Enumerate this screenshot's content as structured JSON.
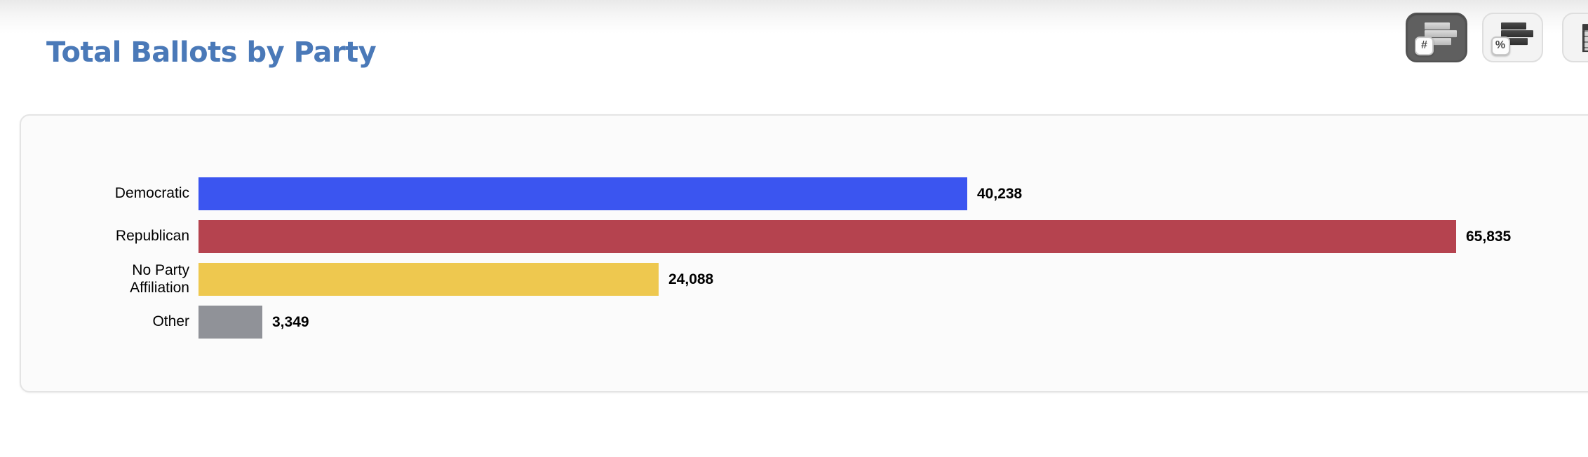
{
  "page": {
    "title": "Total Ballots by Party"
  },
  "toolbar": {
    "view_buttons": [
      {
        "kind": "bar-chart-counts",
        "badge": "#",
        "active": true
      },
      {
        "kind": "bar-chart-percent",
        "badge": "%",
        "active": false
      },
      {
        "kind": "data-table",
        "badge": "",
        "active": false
      }
    ]
  },
  "chart_data": {
    "type": "bar",
    "orientation": "horizontal",
    "title": "Total Ballots by Party",
    "categories": [
      "Democratic",
      "Republican",
      "No Party Affiliation",
      "Other"
    ],
    "values": [
      40238,
      65835,
      24088,
      3349
    ],
    "value_labels": [
      "40,238",
      "65,835",
      "24,088",
      "3,349"
    ],
    "colors": [
      "#3b55f0",
      "#b5434f",
      "#eec84f",
      "#909298"
    ],
    "xlim": [
      0,
      65835
    ],
    "grid": false,
    "legend": false,
    "value_labels_position": "end-of-bar"
  }
}
